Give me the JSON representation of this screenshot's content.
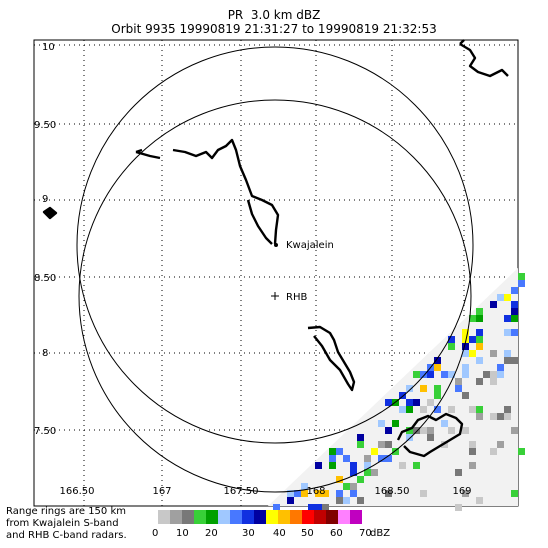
{
  "header": {
    "line1": "PR  3.0 km dBZ",
    "line2": "Orbit 9935 19990819 21:31:27 to 19990819 21:32:53"
  },
  "map": {
    "lat_ticks": [
      "10",
      "9.50",
      "9",
      "8.50",
      "8",
      "7.50"
    ],
    "lon_ticks": [
      "166.50",
      "167",
      "167.50",
      "168",
      "168.50",
      "169"
    ],
    "places": [
      {
        "name": "Kwajalein",
        "marker": "dot"
      },
      {
        "name": "RHB",
        "marker": "plus"
      }
    ],
    "range_ring_km": 150
  },
  "legend": {
    "note": "Range rings are 150 km\nfrom Kwajalein S-band\nand RHB C-band radars.",
    "unit": "dBZ",
    "labels": [
      "0",
      "10",
      "20",
      "30",
      "40",
      "50",
      "60",
      "70"
    ],
    "colors": [
      "#c8c8c8",
      "#a0a0a0",
      "#787878",
      "#38d038",
      "#00a000",
      "#a0c8ff",
      "#4878ff",
      "#1030e0",
      "#0000a0",
      "#ffff00",
      "#ffc000",
      "#ff7800",
      "#ff0000",
      "#c00000",
      "#800000",
      "#ff80ff",
      "#c000c0"
    ]
  },
  "colors": {
    "frame": "#000000",
    "coast": "#000000",
    "background": "#ffffff"
  }
}
